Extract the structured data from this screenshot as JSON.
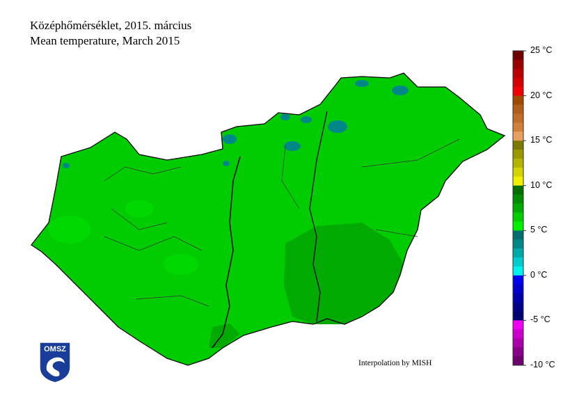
{
  "header": {
    "title_hu": "Középhőmérséklet, 2015. március",
    "title_en": "Mean temperature, March 2015"
  },
  "colorbar": {
    "unit": "°C",
    "min": -10,
    "max": 25,
    "step": 1,
    "labels": [
      "25 °C",
      "20 °C",
      "15 °C",
      "10 °C",
      "5 °C",
      "0 °C",
      "-5 °C",
      "-10 °C"
    ],
    "colors_top_to_bottom": [
      "#6e0000",
      "#9a0000",
      "#b80000",
      "#d40000",
      "#f00000",
      "#a04a00",
      "#b05e18",
      "#c06e28",
      "#d08038",
      "#e8a060",
      "#7a7a00",
      "#9a9a00",
      "#b4b400",
      "#d4d400",
      "#f0f000",
      "#006e00",
      "#008c00",
      "#00aa00",
      "#00cc00",
      "#00f000",
      "#006e6e",
      "#008888",
      "#00aaaa",
      "#00cccc",
      "#00f0f0",
      "#0000f0",
      "#0000cc",
      "#0000aa",
      "#000088",
      "#00006e",
      "#f000f0",
      "#cc00cc",
      "#aa00aa",
      "#880088",
      "#6e006e"
    ]
  },
  "map": {
    "dominant_range": "5-7 °C",
    "colors": {
      "main": "#00cc00",
      "warm": "#00aa00",
      "cool": "#00f000",
      "mountain": "#008888",
      "border": "#000000"
    }
  },
  "credit": "Interpolation by MISH",
  "logo": {
    "text": "OMSZ",
    "color": "#1a3d9a"
  }
}
